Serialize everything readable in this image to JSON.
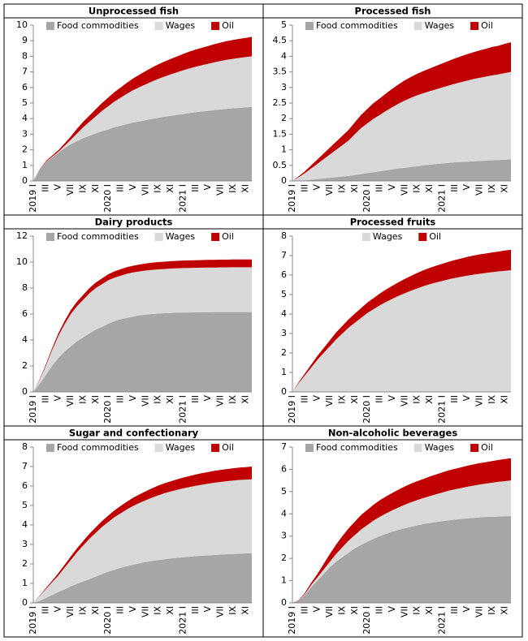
{
  "chart_data": [
    {
      "type": "stacked_area",
      "title": "Unprocessed fish",
      "legend": "upper left",
      "categories": [
        "2019 I",
        null,
        "III",
        null,
        "V",
        null,
        "VII",
        null,
        "IX",
        null,
        "XI",
        null,
        "2020 I",
        null,
        "III",
        null,
        "V",
        null,
        "VII",
        null,
        "IX",
        null,
        "XI",
        null,
        "2021 I",
        null,
        "III",
        null,
        "V",
        null,
        "VII",
        null,
        "IX",
        null,
        "XI",
        null
      ],
      "ylim": [
        0,
        10
      ],
      "yticks": [
        0,
        1,
        2,
        3,
        4,
        5,
        6,
        7,
        8,
        9,
        10
      ],
      "series": [
        {
          "name": "Food commodities",
          "color": "#a6a6a6",
          "values": [
            0,
            0.7,
            1.2,
            1.5,
            1.8,
            2.1,
            2.35,
            2.55,
            2.75,
            2.9,
            3.05,
            3.2,
            3.3,
            3.45,
            3.55,
            3.65,
            3.75,
            3.82,
            3.9,
            3.98,
            4.05,
            4.12,
            4.18,
            4.24,
            4.3,
            4.36,
            4.41,
            4.46,
            4.5,
            4.55,
            4.59,
            4.63,
            4.66,
            4.69,
            4.72,
            4.75
          ]
        },
        {
          "name": "Wages",
          "color": "#d9d9d9",
          "values": [
            0,
            0,
            0.02,
            0.04,
            0.06,
            0.15,
            0.3,
            0.5,
            0.7,
            0.9,
            1.1,
            1.3,
            1.5,
            1.65,
            1.8,
            1.95,
            2.08,
            2.2,
            2.3,
            2.4,
            2.5,
            2.58,
            2.66,
            2.73,
            2.8,
            2.86,
            2.92,
            2.97,
            3.02,
            3.07,
            3.11,
            3.15,
            3.18,
            3.21,
            3.23,
            3.25
          ]
        },
        {
          "name": "Oil",
          "color": "#c00000",
          "values": [
            0,
            0.02,
            0.05,
            0.08,
            0.1,
            0.15,
            0.2,
            0.3,
            0.35,
            0.4,
            0.45,
            0.5,
            0.55,
            0.6,
            0.65,
            0.7,
            0.75,
            0.8,
            0.85,
            0.9,
            0.93,
            0.96,
            0.99,
            1.02,
            1.05,
            1.08,
            1.1,
            1.12,
            1.14,
            1.16,
            1.18,
            1.2,
            1.21,
            1.22,
            1.23,
            1.25
          ]
        }
      ]
    },
    {
      "type": "stacked_area",
      "title": "Processed fish",
      "legend": "upper left",
      "categories": [
        "2019 I",
        null,
        "III",
        null,
        "V",
        null,
        "VII",
        null,
        "IX",
        null,
        "XI",
        null,
        "2020 I",
        null,
        "III",
        null,
        "V",
        null,
        "VII",
        null,
        "IX",
        null,
        "XI",
        null,
        "2021 I",
        null,
        "III",
        null,
        "V",
        null,
        "VII",
        null,
        "IX",
        null,
        "XI",
        null
      ],
      "ylim": [
        0,
        5
      ],
      "yticks": [
        0,
        0.5,
        1,
        1.5,
        2,
        2.5,
        3,
        3.5,
        4,
        4.5,
        5
      ],
      "series": [
        {
          "name": "Food commodities",
          "color": "#a6a6a6",
          "values": [
            0,
            0.01,
            0.02,
            0.04,
            0.06,
            0.08,
            0.1,
            0.12,
            0.14,
            0.16,
            0.19,
            0.22,
            0.25,
            0.28,
            0.31,
            0.34,
            0.37,
            0.4,
            0.42,
            0.45,
            0.47,
            0.5,
            0.52,
            0.54,
            0.56,
            0.58,
            0.6,
            0.61,
            0.62,
            0.63,
            0.64,
            0.65,
            0.66,
            0.67,
            0.68,
            0.7
          ]
        },
        {
          "name": "Wages",
          "color": "#d9d9d9",
          "values": [
            0,
            0.11,
            0.23,
            0.36,
            0.49,
            0.62,
            0.75,
            0.88,
            1.01,
            1.14,
            1.31,
            1.48,
            1.6,
            1.72,
            1.81,
            1.91,
            2.0,
            2.08,
            2.16,
            2.22,
            2.28,
            2.32,
            2.36,
            2.4,
            2.44,
            2.48,
            2.52,
            2.56,
            2.6,
            2.64,
            2.67,
            2.7,
            2.73,
            2.75,
            2.78,
            2.8
          ]
        },
        {
          "name": "Oil",
          "color": "#c00000",
          "values": [
            0,
            0.03,
            0.06,
            0.1,
            0.14,
            0.18,
            0.22,
            0.26,
            0.3,
            0.34,
            0.38,
            0.42,
            0.46,
            0.5,
            0.53,
            0.56,
            0.59,
            0.62,
            0.65,
            0.67,
            0.69,
            0.71,
            0.73,
            0.75,
            0.77,
            0.79,
            0.81,
            0.83,
            0.85,
            0.86,
            0.88,
            0.89,
            0.91,
            0.92,
            0.94,
            0.95
          ]
        }
      ]
    },
    {
      "type": "stacked_area",
      "title": "Dairy products",
      "legend": "upper left",
      "categories": [
        "2019 I",
        null,
        "III",
        null,
        "V",
        null,
        "VII",
        null,
        "IX",
        null,
        "XI",
        null,
        "2020 I",
        null,
        "III",
        null,
        "V",
        null,
        "VII",
        null,
        "IX",
        null,
        "XI",
        null,
        "2021 I",
        null,
        "III",
        null,
        "V",
        null,
        "VII",
        null,
        "IX",
        null,
        "XI",
        null
      ],
      "ylim": [
        0,
        12
      ],
      "yticks": [
        0,
        2,
        4,
        6,
        8,
        10,
        12
      ],
      "series": [
        {
          "name": "Food commodities",
          "color": "#a6a6a6",
          "values": [
            0,
            0.6,
            1.3,
            2.0,
            2.6,
            3.1,
            3.5,
            3.9,
            4.2,
            4.5,
            4.8,
            5.0,
            5.25,
            5.45,
            5.6,
            5.7,
            5.8,
            5.9,
            5.95,
            6.0,
            6.03,
            6.06,
            6.08,
            6.1,
            6.11,
            6.12,
            6.13,
            6.14,
            6.14,
            6.15,
            6.15,
            6.15,
            6.15,
            6.15,
            6.15,
            6.15
          ]
        },
        {
          "name": "Wages",
          "color": "#d9d9d9",
          "values": [
            0,
            0.3,
            0.7,
            1.2,
            1.7,
            2.1,
            2.5,
            2.7,
            2.9,
            3.1,
            3.2,
            3.3,
            3.35,
            3.35,
            3.35,
            3.4,
            3.4,
            3.38,
            3.4,
            3.4,
            3.41,
            3.41,
            3.42,
            3.42,
            3.43,
            3.43,
            3.43,
            3.43,
            3.44,
            3.43,
            3.44,
            3.44,
            3.45,
            3.45,
            3.45,
            3.45
          ]
        },
        {
          "name": "Oil",
          "color": "#c00000",
          "values": [
            0,
            0.05,
            0.1,
            0.15,
            0.2,
            0.25,
            0.3,
            0.35,
            0.38,
            0.4,
            0.42,
            0.44,
            0.46,
            0.48,
            0.5,
            0.51,
            0.52,
            0.53,
            0.54,
            0.55,
            0.56,
            0.56,
            0.57,
            0.57,
            0.58,
            0.58,
            0.58,
            0.59,
            0.59,
            0.59,
            0.6,
            0.6,
            0.6,
            0.6,
            0.6,
            0.6
          ]
        }
      ]
    },
    {
      "type": "stacked_area",
      "title": "Processed fruits",
      "legend": "upper center",
      "categories": [
        "2019 I",
        null,
        "III",
        null,
        "V",
        null,
        "VII",
        null,
        "IX",
        null,
        "XI",
        null,
        "2020 I",
        null,
        "III",
        null,
        "V",
        null,
        "VII",
        null,
        "IX",
        null,
        "XI",
        null,
        "2021 I",
        null,
        "III",
        null,
        "V",
        null,
        "VII",
        null,
        "IX",
        null,
        "XI",
        null
      ],
      "ylim": [
        0,
        8
      ],
      "yticks": [
        0,
        1,
        2,
        3,
        4,
        5,
        6,
        7,
        8
      ],
      "series": [
        {
          "name": "Wages",
          "color": "#d9d9d9",
          "values": [
            0,
            0.45,
            0.85,
            1.25,
            1.65,
            2.0,
            2.35,
            2.7,
            3.0,
            3.3,
            3.55,
            3.8,
            4.05,
            4.25,
            4.45,
            4.62,
            4.78,
            4.93,
            5.07,
            5.2,
            5.32,
            5.43,
            5.53,
            5.62,
            5.7,
            5.78,
            5.85,
            5.91,
            5.97,
            6.02,
            6.07,
            6.11,
            6.15,
            6.19,
            6.22,
            6.25
          ]
        },
        {
          "name": "Oil",
          "color": "#c00000",
          "values": [
            0,
            0.05,
            0.1,
            0.15,
            0.2,
            0.25,
            0.3,
            0.35,
            0.39,
            0.43,
            0.47,
            0.5,
            0.54,
            0.57,
            0.6,
            0.64,
            0.67,
            0.7,
            0.73,
            0.76,
            0.79,
            0.82,
            0.84,
            0.86,
            0.88,
            0.9,
            0.92,
            0.94,
            0.96,
            0.98,
            0.99,
            1.0,
            1.01,
            1.02,
            1.04,
            1.05
          ]
        }
      ]
    },
    {
      "type": "stacked_area",
      "title": "Sugar and confectionary",
      "legend": "upper left",
      "categories": [
        "2019 I",
        null,
        "III",
        null,
        "V",
        null,
        "VII",
        null,
        "IX",
        null,
        "XI",
        null,
        "2020 I",
        null,
        "III",
        null,
        "V",
        null,
        "VII",
        null,
        "IX",
        null,
        "XI",
        null,
        "2021 I",
        null,
        "III",
        null,
        "V",
        null,
        "VII",
        null,
        "IX",
        null,
        "XI",
        null
      ],
      "ylim": [
        0,
        8
      ],
      "yticks": [
        0,
        1,
        2,
        3,
        4,
        5,
        6,
        7,
        8
      ],
      "series": [
        {
          "name": "Food commodities",
          "color": "#a6a6a6",
          "values": [
            0,
            0.1,
            0.25,
            0.4,
            0.55,
            0.7,
            0.85,
            0.98,
            1.1,
            1.22,
            1.35,
            1.48,
            1.6,
            1.7,
            1.8,
            1.88,
            1.96,
            2.03,
            2.1,
            2.15,
            2.2,
            2.24,
            2.28,
            2.31,
            2.34,
            2.37,
            2.4,
            2.42,
            2.44,
            2.46,
            2.48,
            2.5,
            2.51,
            2.52,
            2.54,
            2.55
          ]
        },
        {
          "name": "Wages",
          "color": "#d9d9d9",
          "values": [
            0,
            0.25,
            0.45,
            0.65,
            0.85,
            1.1,
            1.35,
            1.62,
            1.85,
            2.08,
            2.25,
            2.42,
            2.55,
            2.7,
            2.8,
            2.92,
            3.02,
            3.1,
            3.17,
            3.25,
            3.32,
            3.39,
            3.44,
            3.49,
            3.54,
            3.58,
            3.61,
            3.65,
            3.68,
            3.71,
            3.73,
            3.75,
            3.77,
            3.79,
            3.79,
            3.8
          ]
        },
        {
          "name": "Oil",
          "color": "#c00000",
          "values": [
            0,
            0.02,
            0.05,
            0.08,
            0.12,
            0.15,
            0.18,
            0.2,
            0.23,
            0.25,
            0.28,
            0.3,
            0.33,
            0.35,
            0.38,
            0.4,
            0.42,
            0.44,
            0.46,
            0.48,
            0.5,
            0.51,
            0.52,
            0.54,
            0.55,
            0.56,
            0.58,
            0.59,
            0.6,
            0.61,
            0.62,
            0.62,
            0.63,
            0.64,
            0.64,
            0.65
          ]
        }
      ]
    },
    {
      "type": "stacked_area",
      "title": "Non-alcoholic beverages",
      "legend": "upper left",
      "categories": [
        "2019 I",
        null,
        "III",
        null,
        "V",
        null,
        "VII",
        null,
        "IX",
        null,
        "XI",
        null,
        "2020 I",
        null,
        "III",
        null,
        "V",
        null,
        "VII",
        null,
        "IX",
        null,
        "XI",
        null,
        "2021 I",
        null,
        "III",
        null,
        "V",
        null,
        "VII",
        null,
        "IX",
        null,
        "XI",
        null
      ],
      "ylim": [
        0,
        7
      ],
      "yticks": [
        0,
        1,
        2,
        3,
        4,
        5,
        6,
        7
      ],
      "series": [
        {
          "name": "Food commodities",
          "color": "#a6a6a6",
          "values": [
            0,
            0.1,
            0.35,
            0.7,
            1.0,
            1.3,
            1.6,
            1.85,
            2.05,
            2.25,
            2.45,
            2.6,
            2.75,
            2.88,
            3.0,
            3.1,
            3.2,
            3.28,
            3.35,
            3.42,
            3.48,
            3.54,
            3.59,
            3.63,
            3.67,
            3.71,
            3.74,
            3.77,
            3.8,
            3.82,
            3.84,
            3.86,
            3.87,
            3.88,
            3.89,
            3.9
          ]
        },
        {
          "name": "Wages",
          "color": "#d9d9d9",
          "values": [
            0,
            0,
            0.05,
            0.1,
            0.15,
            0.2,
            0.25,
            0.35,
            0.45,
            0.55,
            0.6,
            0.7,
            0.75,
            0.82,
            0.87,
            0.92,
            0.96,
            1.01,
            1.06,
            1.1,
            1.14,
            1.17,
            1.21,
            1.25,
            1.29,
            1.33,
            1.36,
            1.39,
            1.42,
            1.45,
            1.48,
            1.5,
            1.53,
            1.56,
            1.58,
            1.6
          ]
        },
        {
          "name": "Oil",
          "color": "#c00000",
          "values": [
            0,
            0.02,
            0.05,
            0.1,
            0.15,
            0.25,
            0.35,
            0.42,
            0.5,
            0.55,
            0.6,
            0.65,
            0.68,
            0.71,
            0.74,
            0.76,
            0.78,
            0.8,
            0.82,
            0.84,
            0.85,
            0.86,
            0.88,
            0.89,
            0.9,
            0.91,
            0.92,
            0.93,
            0.94,
            0.95,
            0.96,
            0.96,
            0.97,
            0.98,
            0.99,
            1.0
          ]
        }
      ]
    }
  ]
}
